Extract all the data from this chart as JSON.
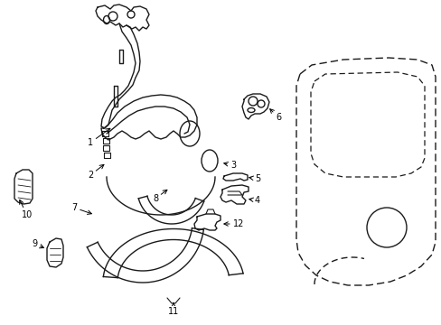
{
  "background_color": "#ffffff",
  "line_color": "#1a1a1a",
  "line_width": 1.0,
  "fig_width": 4.89,
  "fig_height": 3.6,
  "dpi": 100
}
